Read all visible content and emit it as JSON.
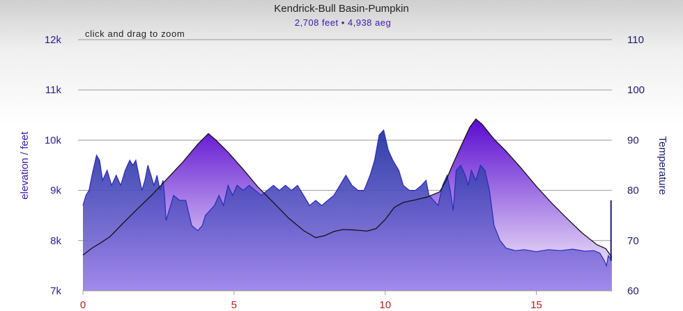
{
  "chart_data": {
    "type": "area",
    "title": "Kendrick-Bull Basin-Pumpkin",
    "subtitle": "2,708 feet • 4,938 aeg",
    "hint": "click and drag to zoom",
    "ylabel": "elevation / feet",
    "y2label": "Temperature",
    "xlim": [
      0,
      17.5
    ],
    "ylim": [
      7000,
      12000
    ],
    "y2lim": [
      60,
      110
    ],
    "xticks": [
      {
        "value": 0,
        "label": "0"
      },
      {
        "value": 5,
        "label": "5"
      },
      {
        "value": 10,
        "label": "10"
      },
      {
        "value": 15,
        "label": "15"
      }
    ],
    "yticks": [
      {
        "value": 7000,
        "label": "7k"
      },
      {
        "value": 8000,
        "label": "8k"
      },
      {
        "value": 9000,
        "label": "9k"
      },
      {
        "value": 10000,
        "label": "10k"
      },
      {
        "value": 11000,
        "label": "11k"
      },
      {
        "value": 12000,
        "label": "12k"
      }
    ],
    "y2ticks": [
      {
        "value": 60,
        "label": "60"
      },
      {
        "value": 70,
        "label": "70"
      },
      {
        "value": 80,
        "label": "80"
      },
      {
        "value": 90,
        "label": "90"
      },
      {
        "value": 100,
        "label": "100"
      },
      {
        "value": 110,
        "label": "110"
      }
    ],
    "grid": true,
    "colors": {
      "elevation_fill_top": "#5a0ad0",
      "elevation_fill_bottom": "#ffffff",
      "elevation_line": "#111111",
      "temperature_fill_top": "#1f2fa0",
      "temperature_fill_bottom": "#9a80ea",
      "temperature_line": "#2a2ab8",
      "grid": "#9a9a9a",
      "xaxis": "#9a9a9a"
    },
    "series": [
      {
        "name": "elevation",
        "axis": "left",
        "points": [
          [
            0,
            7710
          ],
          [
            0.3,
            7850
          ],
          [
            0.6,
            7960
          ],
          [
            0.9,
            8080
          ],
          [
            1.3,
            8330
          ],
          [
            1.8,
            8630
          ],
          [
            2.3,
            8920
          ],
          [
            2.8,
            9240
          ],
          [
            3.3,
            9560
          ],
          [
            3.8,
            9920
          ],
          [
            4.15,
            10130
          ],
          [
            4.4,
            10000
          ],
          [
            4.8,
            9760
          ],
          [
            5.3,
            9420
          ],
          [
            5.8,
            9060
          ],
          [
            6.3,
            8760
          ],
          [
            6.8,
            8450
          ],
          [
            7.3,
            8200
          ],
          [
            7.7,
            8060
          ],
          [
            8.0,
            8100
          ],
          [
            8.3,
            8180
          ],
          [
            8.6,
            8220
          ],
          [
            9.0,
            8210
          ],
          [
            9.4,
            8190
          ],
          [
            9.7,
            8240
          ],
          [
            10.0,
            8420
          ],
          [
            10.3,
            8660
          ],
          [
            10.6,
            8760
          ],
          [
            11.0,
            8810
          ],
          [
            11.4,
            8870
          ],
          [
            11.8,
            8970
          ],
          [
            12.0,
            9180
          ],
          [
            12.2,
            9470
          ],
          [
            12.5,
            9870
          ],
          [
            12.8,
            10260
          ],
          [
            13.0,
            10420
          ],
          [
            13.2,
            10320
          ],
          [
            13.6,
            10020
          ],
          [
            14.0,
            9780
          ],
          [
            14.5,
            9440
          ],
          [
            15.0,
            9080
          ],
          [
            15.5,
            8750
          ],
          [
            16.0,
            8450
          ],
          [
            16.5,
            8160
          ],
          [
            17.0,
            7920
          ],
          [
            17.3,
            7840
          ],
          [
            17.48,
            7680
          ]
        ]
      },
      {
        "name": "temperature",
        "axis": "right",
        "points": [
          [
            0,
            77
          ],
          [
            0.1,
            79
          ],
          [
            0.2,
            80
          ],
          [
            0.3,
            83
          ],
          [
            0.45,
            87
          ],
          [
            0.55,
            86
          ],
          [
            0.65,
            82
          ],
          [
            0.8,
            84
          ],
          [
            0.95,
            81
          ],
          [
            1.1,
            83
          ],
          [
            1.25,
            81
          ],
          [
            1.4,
            84
          ],
          [
            1.55,
            86
          ],
          [
            1.65,
            85
          ],
          [
            1.75,
            86
          ],
          [
            1.85,
            83
          ],
          [
            1.95,
            80
          ],
          [
            2.05,
            82
          ],
          [
            2.15,
            85
          ],
          [
            2.25,
            83
          ],
          [
            2.35,
            81
          ],
          [
            2.45,
            83
          ],
          [
            2.55,
            80
          ],
          [
            2.65,
            82
          ],
          [
            2.7,
            79
          ],
          [
            2.75,
            74
          ],
          [
            2.85,
            76
          ],
          [
            3.0,
            79
          ],
          [
            3.2,
            78
          ],
          [
            3.4,
            78
          ],
          [
            3.6,
            73
          ],
          [
            3.8,
            72
          ],
          [
            3.95,
            73
          ],
          [
            4.05,
            75
          ],
          [
            4.2,
            76
          ],
          [
            4.35,
            77
          ],
          [
            4.5,
            79
          ],
          [
            4.65,
            77
          ],
          [
            4.8,
            81
          ],
          [
            4.95,
            79
          ],
          [
            5.1,
            81
          ],
          [
            5.3,
            80
          ],
          [
            5.5,
            81
          ],
          [
            5.7,
            80
          ],
          [
            5.9,
            79
          ],
          [
            6.1,
            80
          ],
          [
            6.3,
            81
          ],
          [
            6.5,
            80
          ],
          [
            6.7,
            81
          ],
          [
            6.9,
            80
          ],
          [
            7.1,
            81
          ],
          [
            7.3,
            79
          ],
          [
            7.5,
            77
          ],
          [
            7.7,
            78
          ],
          [
            7.9,
            77
          ],
          [
            8.1,
            78
          ],
          [
            8.3,
            79
          ],
          [
            8.5,
            81
          ],
          [
            8.7,
            83
          ],
          [
            8.9,
            81
          ],
          [
            9.1,
            80
          ],
          [
            9.3,
            80
          ],
          [
            9.5,
            83
          ],
          [
            9.65,
            86
          ],
          [
            9.8,
            91
          ],
          [
            9.95,
            92
          ],
          [
            10.1,
            88
          ],
          [
            10.25,
            86
          ],
          [
            10.45,
            84
          ],
          [
            10.6,
            81
          ],
          [
            10.8,
            80
          ],
          [
            11.0,
            80
          ],
          [
            11.2,
            81
          ],
          [
            11.35,
            82
          ],
          [
            11.45,
            79
          ],
          [
            11.6,
            78
          ],
          [
            11.75,
            77
          ],
          [
            11.9,
            81
          ],
          [
            12.05,
            83
          ],
          [
            12.15,
            80
          ],
          [
            12.25,
            76
          ],
          [
            12.35,
            84
          ],
          [
            12.5,
            85
          ],
          [
            12.65,
            83
          ],
          [
            12.75,
            81
          ],
          [
            12.85,
            84
          ],
          [
            13.0,
            82
          ],
          [
            13.15,
            85
          ],
          [
            13.3,
            84
          ],
          [
            13.45,
            80
          ],
          [
            13.6,
            73
          ],
          [
            13.8,
            70
          ],
          [
            14.0,
            68.5
          ],
          [
            14.3,
            68
          ],
          [
            14.6,
            68.2
          ],
          [
            15.0,
            67.8
          ],
          [
            15.4,
            68.2
          ],
          [
            15.8,
            68
          ],
          [
            16.2,
            68.3
          ],
          [
            16.6,
            67.9
          ],
          [
            16.9,
            68
          ],
          [
            17.1,
            67.5
          ],
          [
            17.25,
            66
          ],
          [
            17.32,
            65
          ],
          [
            17.38,
            67
          ],
          [
            17.45,
            66.5
          ],
          [
            17.5,
            67
          ]
        ]
      },
      {
        "name": "end-marker",
        "axis": "right",
        "points": [
          [
            17.47,
            78
          ],
          [
            17.47,
            66
          ]
        ]
      }
    ]
  }
}
